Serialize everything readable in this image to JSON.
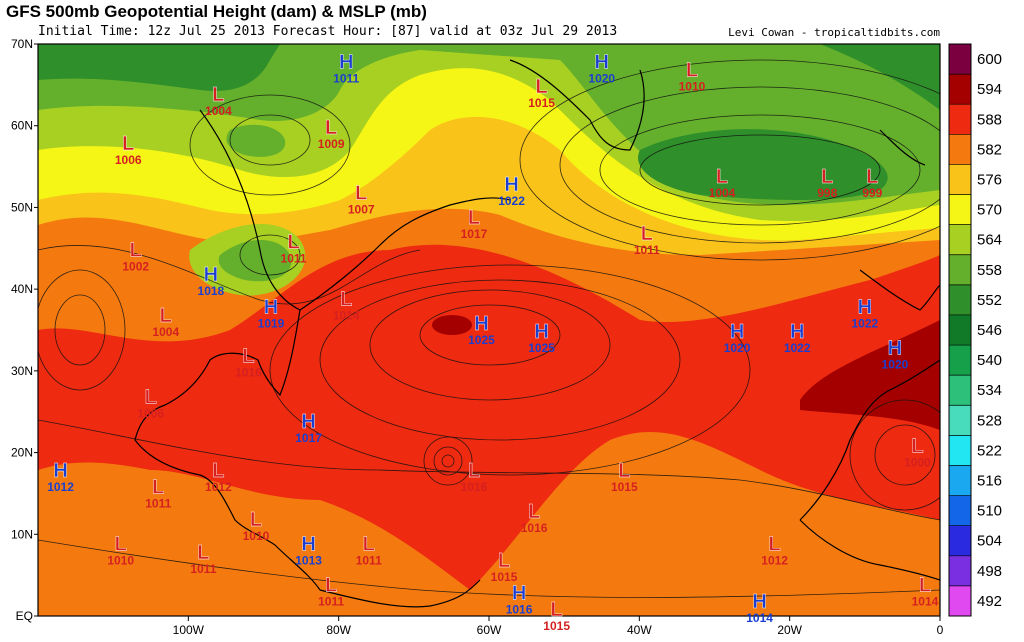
{
  "header": {
    "title": "GFS 500mb Geopotential Height (dam) & MSLP (mb)",
    "subtitle": "Initial Time: 12z Jul 25 2013 Forecast Hour: [87] valid at 03z Jul 29 2013",
    "credit": "Levi Cowan - tropicaltidbits.com"
  },
  "axes": {
    "lat_labels": [
      "70N",
      "60N",
      "50N",
      "40N",
      "30N",
      "20N",
      "10N",
      "EQ"
    ],
    "lon_labels": [
      "100W",
      "80W",
      "60W",
      "40W",
      "20W",
      "0"
    ]
  },
  "colorbar": {
    "levels": [
      "600",
      "594",
      "588",
      "582",
      "576",
      "570",
      "564",
      "558",
      "552",
      "546",
      "540",
      "534",
      "528",
      "522",
      "516",
      "510",
      "504",
      "498",
      "492"
    ],
    "colors": [
      "#7a0040",
      "#a40000",
      "#ee2a10",
      "#f47a10",
      "#f9c31a",
      "#f5f516",
      "#a8d022",
      "#64b02c",
      "#2f8f2a",
      "#117a28",
      "#16a04a",
      "#2cc07a",
      "#48dcbd",
      "#22e6f2",
      "#1aa8f0",
      "#1466e8",
      "#2a2ae0",
      "#7a30e0",
      "#e048f0"
    ]
  },
  "systems": [
    {
      "t": "H",
      "p": "1011",
      "lon": -79,
      "lat": 67
    },
    {
      "t": "L",
      "p": "1004",
      "lon": -96,
      "lat": 63
    },
    {
      "t": "L",
      "p": "1006",
      "lon": -108,
      "lat": 57
    },
    {
      "t": "L",
      "p": "1009",
      "lon": -81,
      "lat": 59
    },
    {
      "t": "L",
      "p": "1007",
      "lon": -77,
      "lat": 51
    },
    {
      "t": "L",
      "p": "1011",
      "lon": -86,
      "lat": 45
    },
    {
      "t": "L",
      "p": "1002",
      "lon": -107,
      "lat": 44
    },
    {
      "t": "H",
      "p": "1018",
      "lon": -97,
      "lat": 41
    },
    {
      "t": "H",
      "p": "1019",
      "lon": -89,
      "lat": 37
    },
    {
      "t": "L",
      "p": "1014",
      "lon": -79,
      "lat": 38
    },
    {
      "t": "L",
      "p": "1004",
      "lon": -103,
      "lat": 36
    },
    {
      "t": "L",
      "p": "1016",
      "lon": -92,
      "lat": 31
    },
    {
      "t": "L",
      "p": "1006",
      "lon": -105,
      "lat": 26
    },
    {
      "t": "H",
      "p": "1017",
      "lon": -84,
      "lat": 23
    },
    {
      "t": "H",
      "p": "1012",
      "lon": -117,
      "lat": 17
    },
    {
      "t": "L",
      "p": "1011",
      "lon": -104,
      "lat": 15
    },
    {
      "t": "L",
      "p": "1012",
      "lon": -96,
      "lat": 17
    },
    {
      "t": "L",
      "p": "1010",
      "lon": -91,
      "lat": 11
    },
    {
      "t": "L",
      "p": "1010",
      "lon": -109,
      "lat": 8
    },
    {
      "t": "L",
      "p": "1011",
      "lon": -98,
      "lat": 7
    },
    {
      "t": "H",
      "p": "1013",
      "lon": -84,
      "lat": 8
    },
    {
      "t": "L",
      "p": "1011",
      "lon": -76,
      "lat": 8
    },
    {
      "t": "L",
      "p": "1011",
      "lon": -81,
      "lat": 3
    },
    {
      "t": "L",
      "p": "1016",
      "lon": -62,
      "lat": 17
    },
    {
      "t": "L",
      "p": "1016",
      "lon": -54,
      "lat": 12
    },
    {
      "t": "L",
      "p": "1015",
      "lon": -58,
      "lat": 6
    },
    {
      "t": "H",
      "p": "1016",
      "lon": -56,
      "lat": 2
    },
    {
      "t": "L",
      "p": "1015",
      "lon": -51,
      "lat": 0
    },
    {
      "t": "L",
      "p": "1015",
      "lon": -42,
      "lat": 17
    },
    {
      "t": "L",
      "p": "1012",
      "lon": -22,
      "lat": 8
    },
    {
      "t": "H",
      "p": "1014",
      "lon": -24,
      "lat": 1
    },
    {
      "t": "L",
      "p": "1014",
      "lon": -2,
      "lat": 3
    },
    {
      "t": "L",
      "p": "1000",
      "lon": -3,
      "lat": 20
    },
    {
      "t": "H",
      "p": "1025",
      "lon": -61,
      "lat": 35
    },
    {
      "t": "H",
      "p": "1025",
      "lon": -53,
      "lat": 34
    },
    {
      "t": "H",
      "p": "1020",
      "lon": -27,
      "lat": 34
    },
    {
      "t": "H",
      "p": "1022",
      "lon": -19,
      "lat": 34
    },
    {
      "t": "H",
      "p": "1022",
      "lon": -10,
      "lat": 37
    },
    {
      "t": "H",
      "p": "1020",
      "lon": -6,
      "lat": 32
    },
    {
      "t": "L",
      "p": "1017",
      "lon": -62,
      "lat": 48
    },
    {
      "t": "H",
      "p": "1022",
      "lon": -57,
      "lat": 52
    },
    {
      "t": "L",
      "p": "1011",
      "lon": -39,
      "lat": 46
    },
    {
      "t": "L",
      "p": "1015",
      "lon": -53,
      "lat": 64
    },
    {
      "t": "H",
      "p": "1020",
      "lon": -45,
      "lat": 67
    },
    {
      "t": "L",
      "p": "1010",
      "lon": -33,
      "lat": 66
    },
    {
      "t": "L",
      "p": "1004",
      "lon": -29,
      "lat": 53
    },
    {
      "t": "L",
      "p": "998",
      "lon": -15,
      "lat": 53
    },
    {
      "t": "L",
      "p": "999",
      "lon": -9,
      "lat": 53
    }
  ]
}
